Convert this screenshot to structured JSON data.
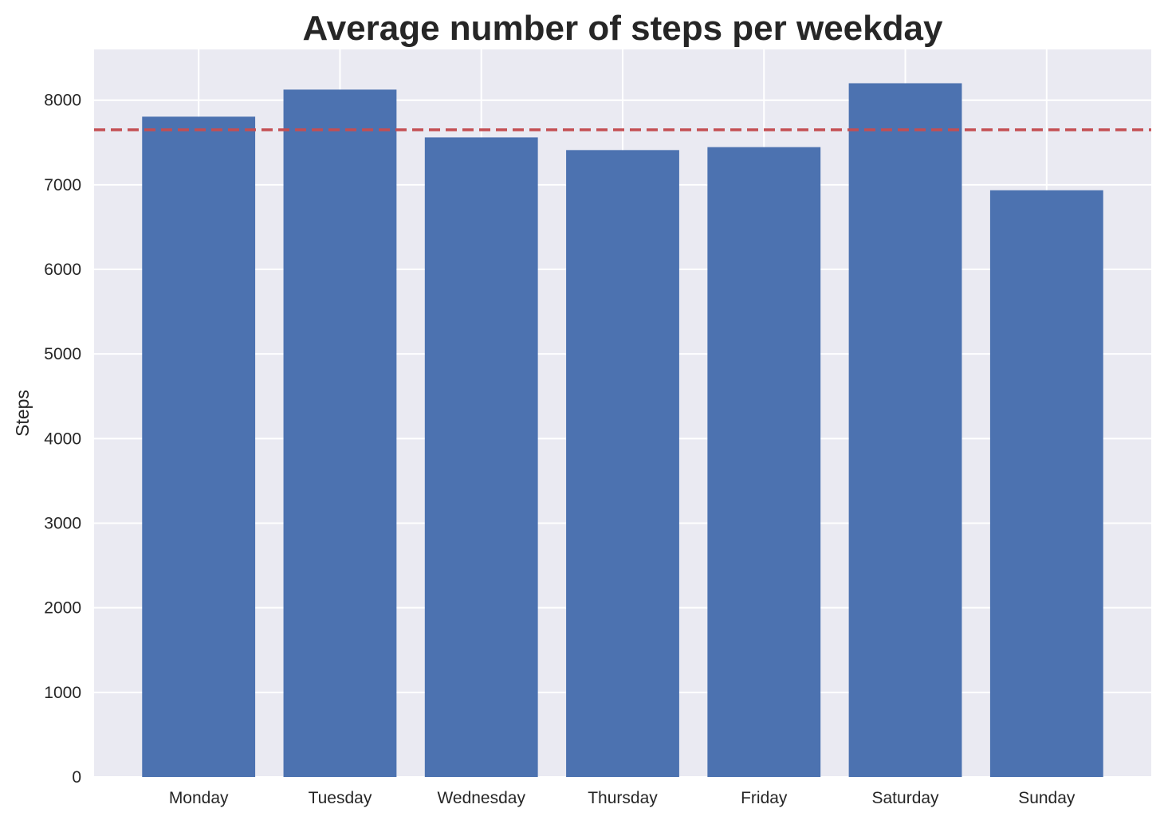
{
  "chart_data": {
    "type": "bar",
    "title": "Average number of steps per weekday",
    "xlabel": "",
    "ylabel": "Steps",
    "categories": [
      "Monday",
      "Tuesday",
      "Wednesday",
      "Thursday",
      "Friday",
      "Saturday",
      "Sunday"
    ],
    "values": [
      7805,
      8125,
      7560,
      7410,
      7445,
      8200,
      6935
    ],
    "yticks": [
      0,
      1000,
      2000,
      3000,
      4000,
      5000,
      6000,
      7000,
      8000
    ],
    "ylim": [
      0,
      8600
    ],
    "grid": true,
    "reference_line": {
      "value": 7650,
      "style": "dashed"
    },
    "colors": {
      "bar": "#4c72b0",
      "reference_line": "#c44e52",
      "plot_background": "#eaeaf2",
      "grid": "#ffffff"
    }
  }
}
